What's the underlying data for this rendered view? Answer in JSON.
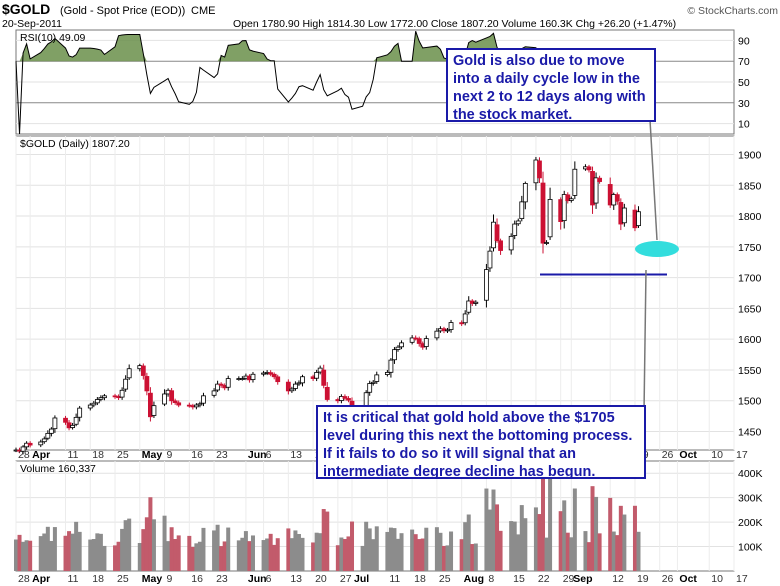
{
  "header": {
    "symbol": "$GOLD",
    "description": "(Gold - Spot Price (EOD))",
    "exchange": "CME",
    "date": "20-Sep-2011",
    "stats": "Open 1780.90  High 1814.30  Low 1772.00  Close 1807.20  Volume 160.3K  Chg +26.20 (+1.47%)",
    "copyright": "© StockCharts.com"
  },
  "rsi_panel": {
    "legend": "RSI(10) 49.09",
    "ticks": [
      "90",
      "70",
      "50",
      "30",
      "10"
    ]
  },
  "price_panel": {
    "legend": "$GOLD (Daily) 1807.20",
    "ticks": [
      "1900",
      "1850",
      "1800",
      "1750",
      "1700",
      "1650",
      "1600",
      "1550",
      "1500",
      "1450"
    ]
  },
  "volume_panel": {
    "legend": "Volume 160,337",
    "ticks": [
      "400K",
      "300K",
      "200K",
      "100K"
    ]
  },
  "x_axis_labels": [
    "28",
    "Apr",
    "11",
    "18",
    "25",
    "May",
    "9",
    "16",
    "23",
    "Jun",
    "6",
    "13",
    "20",
    "27",
    "Jul",
    "11",
    "18",
    "25",
    "Aug",
    "8",
    "15",
    "22",
    "29",
    "Sep",
    "12",
    "19",
    "26",
    "Oct",
    "10",
    "17"
  ],
  "annotations": {
    "top_note": "Gold is also due to move into a daily cycle low in the next 2 to 12 days along with the stock market.",
    "bottom_note": "It is critical that gold hold above the $1705 level during this next the bottoming process. If it fails to do so it will signal that an intermediate degree decline has begun."
  },
  "colors": {
    "up": "#ffffff",
    "down": "#cc1133",
    "annotation": "#1a1aa8",
    "target": "#33dddd",
    "rsi_fill": "#6a8f4a",
    "volume_up": "#8c8c8c",
    "volume_down": "#c25b6b"
  },
  "chart_data": {
    "type": "candlestick",
    "title": "$GOLD (Gold - Spot Price (EOD)) CME",
    "x_range": [
      "2011-03-28",
      "2011-10-17"
    ],
    "price_range": [
      1420,
      1930
    ],
    "rsi_range": [
      0,
      100
    ],
    "volume_range": [
      0,
      450000
    ],
    "support_level": 1705,
    "last": {
      "date": "2011-09-20",
      "open": 1780.9,
      "high": 1814.3,
      "low": 1772.0,
      "close": 1807.2,
      "volume": 160337,
      "rsi": 49.09
    },
    "daily_close": [
      [
        "2011-03-28",
        1420
      ],
      [
        "2011-03-29",
        1418
      ],
      [
        "2011-03-30",
        1425
      ],
      [
        "2011-03-31",
        1431
      ],
      [
        "2011-04-01",
        1428
      ],
      [
        "2011-04-04",
        1433
      ],
      [
        "2011-04-05",
        1438
      ],
      [
        "2011-04-06",
        1447
      ],
      [
        "2011-04-07",
        1454
      ],
      [
        "2011-04-08",
        1472
      ],
      [
        "2011-04-11",
        1465
      ],
      [
        "2011-04-12",
        1456
      ],
      [
        "2011-04-13",
        1460
      ],
      [
        "2011-04-14",
        1473
      ],
      [
        "2011-04-15",
        1488
      ],
      [
        "2011-04-18",
        1493
      ],
      [
        "2011-04-19",
        1496
      ],
      [
        "2011-04-20",
        1502
      ],
      [
        "2011-04-21",
        1505
      ],
      [
        "2011-04-22",
        1508
      ],
      [
        "2011-04-25",
        1507
      ],
      [
        "2011-04-26",
        1505
      ],
      [
        "2011-04-27",
        1517
      ],
      [
        "2011-04-28",
        1535
      ],
      [
        "2011-04-29",
        1552
      ],
      [
        "2011-05-02",
        1557
      ],
      [
        "2011-05-03",
        1541
      ],
      [
        "2011-05-04",
        1516
      ],
      [
        "2011-05-05",
        1474
      ],
      [
        "2011-05-06",
        1492
      ],
      [
        "2011-05-09",
        1511
      ],
      [
        "2011-05-10",
        1517
      ],
      [
        "2011-05-11",
        1500
      ],
      [
        "2011-05-12",
        1497
      ],
      [
        "2011-05-13",
        1493
      ],
      [
        "2011-05-16",
        1492
      ],
      [
        "2011-05-17",
        1490
      ],
      [
        "2011-05-18",
        1493
      ],
      [
        "2011-05-19",
        1495
      ],
      [
        "2011-05-20",
        1508
      ],
      [
        "2011-05-23",
        1516
      ],
      [
        "2011-05-24",
        1527
      ],
      [
        "2011-05-25",
        1525
      ],
      [
        "2011-05-26",
        1521
      ],
      [
        "2011-05-27",
        1536
      ],
      [
        "2011-05-30",
        1536
      ],
      [
        "2011-05-31",
        1536
      ],
      [
        "2011-06-01",
        1540
      ],
      [
        "2011-06-02",
        1534
      ],
      [
        "2011-06-03",
        1543
      ],
      [
        "2011-06-06",
        1545
      ],
      [
        "2011-06-07",
        1546
      ],
      [
        "2011-06-08",
        1543
      ],
      [
        "2011-06-09",
        1539
      ],
      [
        "2011-06-10",
        1531
      ],
      [
        "2011-06-13",
        1516
      ],
      [
        "2011-06-14",
        1519
      ],
      [
        "2011-06-15",
        1527
      ],
      [
        "2011-06-16",
        1529
      ],
      [
        "2011-06-17",
        1539
      ],
      [
        "2011-06-20",
        1536
      ],
      [
        "2011-06-21",
        1546
      ],
      [
        "2011-06-22",
        1553
      ],
      [
        "2011-06-23",
        1525
      ],
      [
        "2011-06-24",
        1502
      ],
      [
        "2011-06-27",
        1500
      ],
      [
        "2011-06-28",
        1507
      ],
      [
        "2011-06-29",
        1504
      ],
      [
        "2011-06-30",
        1501
      ],
      [
        "2011-07-01",
        1486
      ],
      [
        "2011-07-04",
        1489
      ],
      [
        "2011-07-05",
        1513
      ],
      [
        "2011-07-06",
        1528
      ],
      [
        "2011-07-07",
        1530
      ],
      [
        "2011-07-08",
        1542
      ],
      [
        "2011-07-11",
        1546
      ],
      [
        "2011-07-12",
        1566
      ],
      [
        "2011-07-13",
        1583
      ],
      [
        "2011-07-14",
        1587
      ],
      [
        "2011-07-15",
        1594
      ],
      [
        "2011-07-18",
        1602
      ],
      [
        "2011-07-19",
        1601
      ],
      [
        "2011-07-20",
        1593
      ],
      [
        "2011-07-21",
        1587
      ],
      [
        "2011-07-22",
        1601
      ],
      [
        "2011-07-25",
        1613
      ],
      [
        "2011-07-26",
        1617
      ],
      [
        "2011-07-27",
        1614
      ],
      [
        "2011-07-28",
        1615
      ],
      [
        "2011-07-29",
        1627
      ],
      [
        "2011-08-01",
        1625
      ],
      [
        "2011-08-02",
        1641
      ],
      [
        "2011-08-03",
        1662
      ],
      [
        "2011-08-04",
        1658
      ],
      [
        "2011-08-05",
        1660
      ],
      [
        "2011-08-08",
        1713
      ],
      [
        "2011-08-09",
        1743
      ],
      [
        "2011-08-10",
        1790
      ],
      [
        "2011-08-11",
        1760
      ],
      [
        "2011-08-12",
        1744
      ],
      [
        "2011-08-15",
        1767
      ],
      [
        "2011-08-16",
        1787
      ],
      [
        "2011-08-17",
        1792
      ],
      [
        "2011-08-18",
        1823
      ],
      [
        "2011-08-19",
        1853
      ],
      [
        "2011-08-22",
        1891
      ],
      [
        "2011-08-23",
        1862
      ],
      [
        "2011-08-24",
        1756
      ],
      [
        "2011-08-25",
        1757
      ],
      [
        "2011-08-26",
        1827
      ],
      [
        "2011-08-29",
        1791
      ],
      [
        "2011-08-30",
        1835
      ],
      [
        "2011-08-31",
        1825
      ],
      [
        "2011-09-01",
        1828
      ],
      [
        "2011-09-02",
        1876
      ],
      [
        "2011-09-05",
        1880
      ],
      [
        "2011-09-06",
        1875
      ],
      [
        "2011-09-07",
        1818
      ],
      [
        "2011-09-08",
        1862
      ],
      [
        "2011-09-09",
        1856
      ],
      [
        "2011-09-12",
        1818
      ],
      [
        "2011-09-13",
        1835
      ],
      [
        "2011-09-14",
        1824
      ],
      [
        "2011-09-15",
        1787
      ],
      [
        "2011-09-16",
        1813
      ],
      [
        "2011-09-19",
        1781
      ],
      [
        "2011-09-20",
        1807
      ]
    ]
  }
}
